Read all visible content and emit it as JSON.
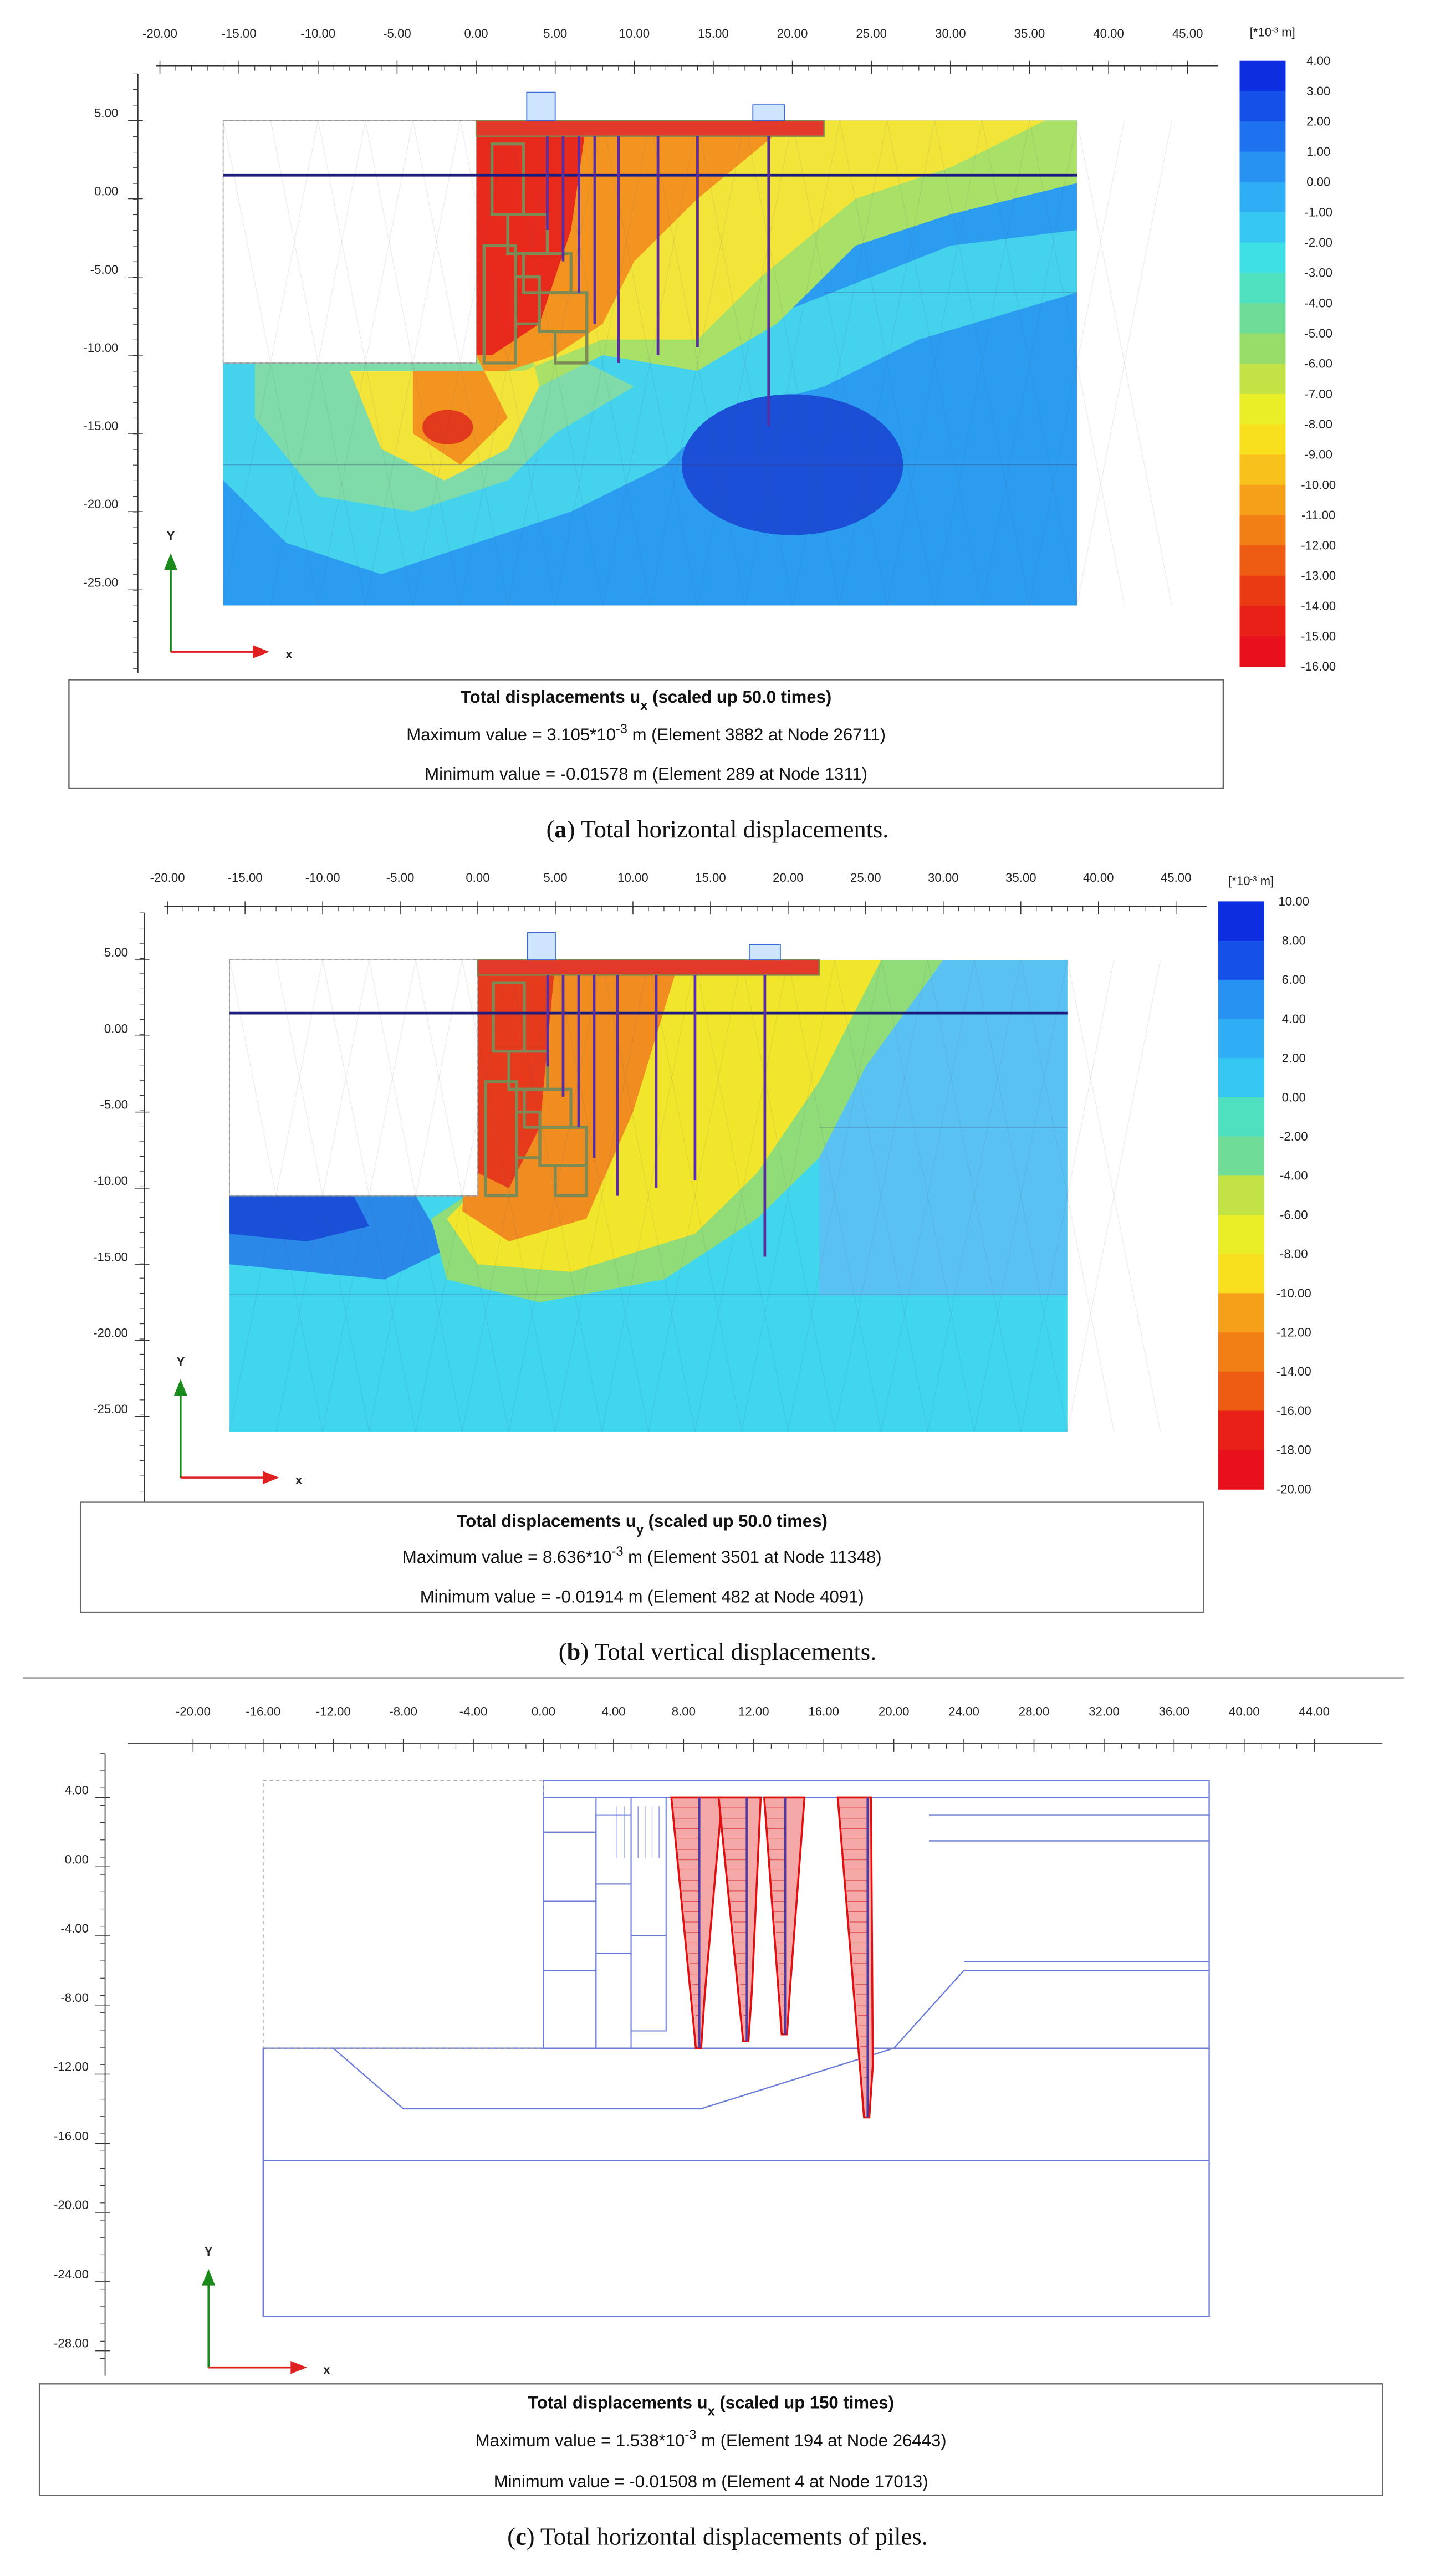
{
  "panels": [
    {
      "x_ticks": [
        "-20.00",
        "-15.00",
        "-10.00",
        "-5.00",
        "0.00",
        "5.00",
        "10.00",
        "15.00",
        "20.00",
        "25.00",
        "30.00",
        "35.00",
        "40.00",
        "45.00"
      ],
      "y_ticks": [
        "5.00",
        "0.00",
        "-5.00",
        "-10.00",
        "-15.00",
        "-20.00",
        "-25.00"
      ],
      "legend_unit": {
        "pre": "[*10",
        "sup": "-3",
        "post": " m]"
      },
      "legend_labels": [
        "4.00",
        "3.00",
        "2.00",
        "1.00",
        "0.00",
        "-1.00",
        "-2.00",
        "-3.00",
        "-4.00",
        "-5.00",
        "-6.00",
        "-7.00",
        "-8.00",
        "-9.00",
        "-10.00",
        "-11.00",
        "-12.00",
        "-13.00",
        "-14.00",
        "-15.00",
        "-16.00"
      ],
      "axis_x": "x",
      "axis_y": "Y",
      "title": {
        "pre": "Total displacements u",
        "sub": "x",
        "post": " (scaled up 50.0 times)"
      },
      "max": {
        "pre": "Maximum value = 3.105*10",
        "sup": "-3",
        "post": " m (Element 3882 at Node 26711)"
      },
      "min": "Minimum value = -0.01578 m (Element 289 at Node 1311)",
      "caption": {
        "open": "(",
        "label": "a",
        "text": ") Total horizontal displacements."
      }
    },
    {
      "x_ticks": [
        "-20.00",
        "-15.00",
        "-10.00",
        "-5.00",
        "0.00",
        "5.00",
        "10.00",
        "15.00",
        "20.00",
        "25.00",
        "30.00",
        "35.00",
        "40.00",
        "45.00"
      ],
      "y_ticks": [
        "5.00",
        "0.00",
        "-5.00",
        "-10.00",
        "-15.00",
        "-20.00",
        "-25.00"
      ],
      "legend_unit": {
        "pre": "[*10",
        "sup": "-3",
        "post": " m]"
      },
      "legend_labels": [
        "10.00",
        "8.00",
        "6.00",
        "4.00",
        "2.00",
        "0.00",
        "-2.00",
        "-4.00",
        "-6.00",
        "-8.00",
        "-10.00",
        "-12.00",
        "-14.00",
        "-16.00",
        "-18.00",
        "-20.00"
      ],
      "axis_x": "x",
      "axis_y": "Y",
      "title": {
        "pre": "Total displacements u",
        "sub": "y",
        "post": " (scaled up 50.0 times)"
      },
      "max": {
        "pre": "Maximum value = 8.636*10",
        "sup": "-3",
        "post": " m (Element 3501 at Node 11348)"
      },
      "min": "Minimum value = -0.01914 m (Element 482 at Node 4091)",
      "caption": {
        "open": "(",
        "label": "b",
        "text": ") Total vertical displacements."
      }
    },
    {
      "x_ticks": [
        "-20.00",
        "-16.00",
        "-12.00",
        "-8.00",
        "-4.00",
        "0.00",
        "4.00",
        "8.00",
        "12.00",
        "16.00",
        "20.00",
        "24.00",
        "28.00",
        "32.00",
        "36.00",
        "40.00",
        "44.00"
      ],
      "y_ticks": [
        "4.00",
        "0.00",
        "-4.00",
        "-8.00",
        "-12.00",
        "-16.00",
        "-20.00",
        "-24.00",
        "-28.00"
      ],
      "axis_x": "x",
      "axis_y": "Y",
      "title": {
        "pre": "Total displacements u",
        "sub": "x",
        "post": " (scaled up 150 times)"
      },
      "max": {
        "pre": "Maximum value = 1.538*10",
        "sup": "-3",
        "post": " m (Element 194 at Node 26443)"
      },
      "min": "Minimum value = -0.01508 m (Element 4 at Node 17013)",
      "caption": {
        "open": "(",
        "label": "c",
        "text": ") Total horizontal displacements of piles."
      }
    }
  ]
}
